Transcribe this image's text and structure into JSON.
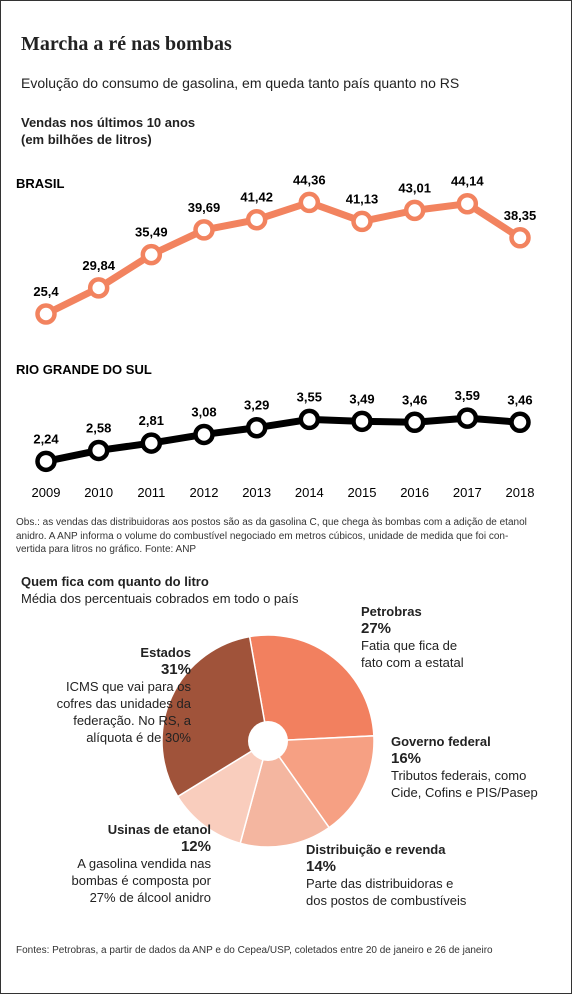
{
  "title": "Marcha a ré nas bombas",
  "subtitle": "Evolução do consumo de gasolina, em queda tanto país quanto no RS",
  "section_title": [
    "Vendas nos últimos 10 anos",
    "(em bilhões de litros)"
  ],
  "note": [
    "Obs.: as vendas das distribuidoras aos postos são as da gasolina C, que chega às bombas com a adição de etanol",
    "anidro. A ANP informa o volume do combustível negociado em metros cúbicos, unidade de medida que foi con-",
    "vertida para litros no gráfico.   Fonte: ANP"
  ],
  "sources": "Fontes: Petrobras, a partir de dados da ANP e do Cepea/USP, coletados entre 20 de janeiro e 26 de janeiro",
  "chart_data": [
    {
      "type": "line",
      "categories": [
        "2009",
        "2010",
        "2011",
        "2012",
        "2013",
        "2014",
        "2015",
        "2016",
        "2017",
        "2018"
      ],
      "series": [
        {
          "name": "BRASIL",
          "color": "#f2835f",
          "ylim": [
            22,
            48
          ],
          "values": [
            25.4,
            29.84,
            35.49,
            39.69,
            41.42,
            44.36,
            41.13,
            43.01,
            44.14,
            38.35
          ],
          "value_labels": [
            "25,4",
            "29,84",
            "35,49",
            "39,69",
            "41,42",
            "44,36",
            "41,13",
            "43,01",
            "44,14",
            "38,35"
          ]
        },
        {
          "name": "RIO GRANDE DO SUL",
          "color": "#000000",
          "ylim": [
            2,
            4
          ],
          "values": [
            2.24,
            2.58,
            2.81,
            3.08,
            3.29,
            3.55,
            3.49,
            3.46,
            3.59,
            3.46
          ],
          "value_labels": [
            "2,24",
            "2,58",
            "2,81",
            "3,08",
            "3,29",
            "3,55",
            "3,49",
            "3,46",
            "3,59",
            "3,46"
          ]
        }
      ]
    },
    {
      "type": "pie",
      "title": "Quem fica com quanto do litro",
      "subtitle": "Média dos percentuais cobrados em todo o país",
      "slices": [
        {
          "name": "Petrobras",
          "value": 27,
          "value_label": "27%",
          "color": "#f2805f",
          "description": [
            "Fatia que fica de",
            "fato com a estatal"
          ]
        },
        {
          "name": "Governo federal",
          "value": 16,
          "value_label": "16%",
          "color": "#f6a083",
          "description": [
            "Tributos federais, como",
            "Cide, Cofins e PIS/Pasep"
          ]
        },
        {
          "name": "Distribuição e revenda",
          "value": 14,
          "value_label": "14%",
          "color": "#f4b6a0",
          "description": [
            "Parte das distribuidoras e",
            "dos postos de combustíveis"
          ]
        },
        {
          "name": "Usinas de etanol",
          "value": 12,
          "value_label": "12%",
          "color": "#f9cdbd",
          "description": [
            "A gasolina vendida nas",
            "bombas é composta por",
            "27% de álcool anidro"
          ]
        },
        {
          "name": "Estados",
          "value": 31,
          "value_label": "31%",
          "color": "#a0533a",
          "description": [
            "ICMS que vai para os",
            "cofres das unidades da",
            "federação. No RS, a",
            "alíquota é de 30%"
          ]
        }
      ]
    }
  ]
}
